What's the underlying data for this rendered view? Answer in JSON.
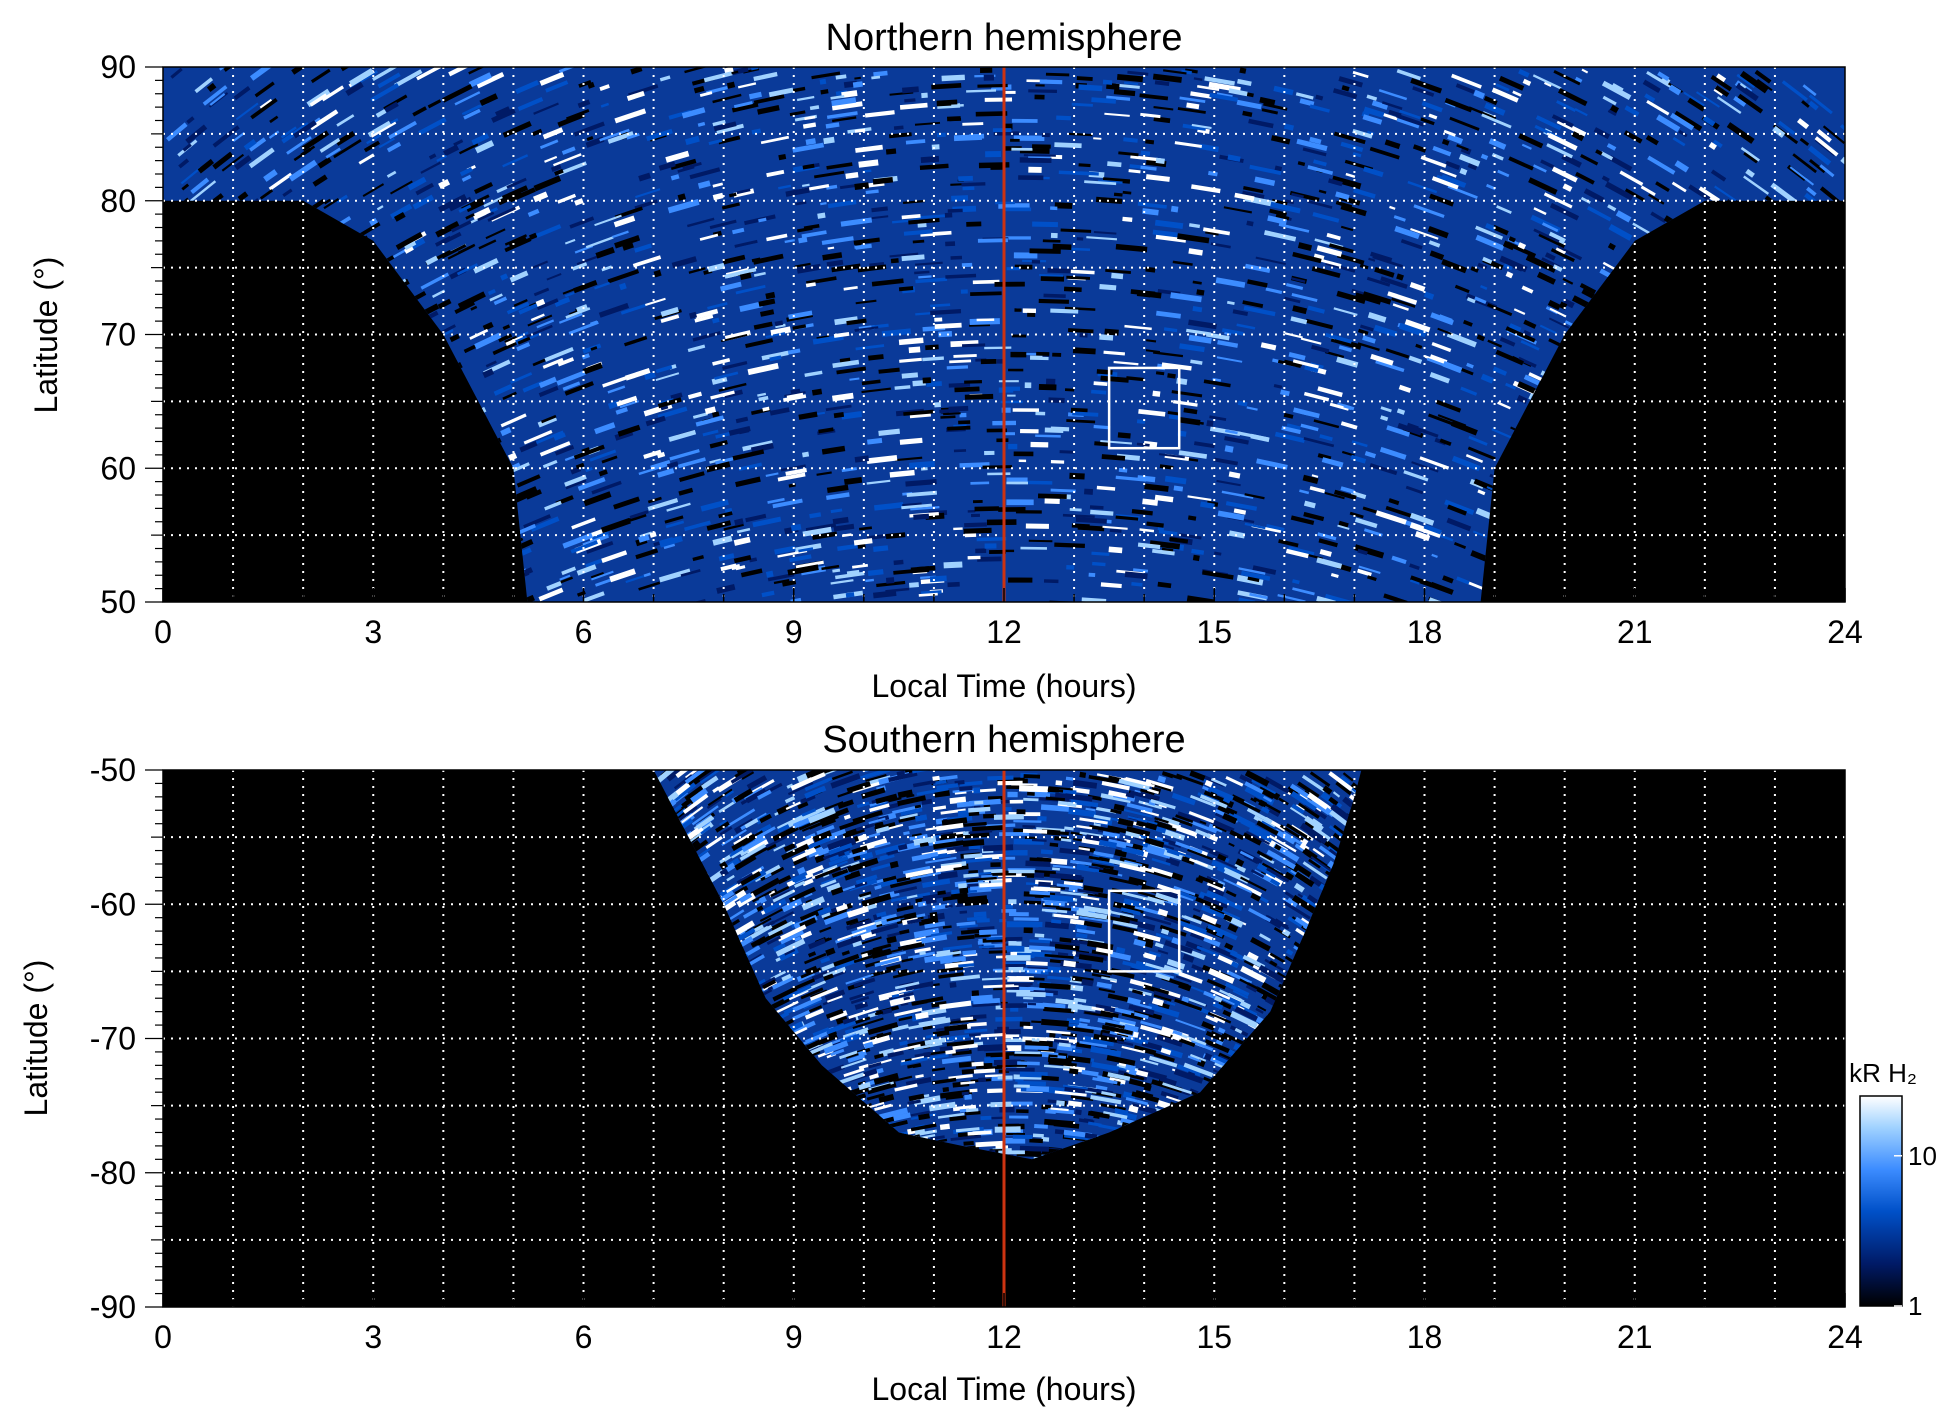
{
  "chart_data": [
    {
      "type": "heatmap",
      "title": "Northern hemisphere",
      "xlabel": "Local Time (hours)",
      "ylabel": "Latitude (°)",
      "xlim": [
        0,
        24
      ],
      "ylim": [
        50,
        90
      ],
      "x_ticks": [
        "0",
        "3",
        "6",
        "9",
        "12",
        "15",
        "18",
        "21",
        "24"
      ],
      "y_ticks": [
        "50",
        "60",
        "70",
        "80",
        "90"
      ],
      "grid": true,
      "reference_line": {
        "x": 12,
        "color": "#cc3311"
      },
      "highlight_box": {
        "x": [
          13.5,
          14.5
        ],
        "y": [
          61.5,
          67.5
        ],
        "color": "#ffffff"
      },
      "coverage_envelope": [
        [
          0,
          80
        ],
        [
          1,
          80
        ],
        [
          2,
          80
        ],
        [
          3,
          77
        ],
        [
          4,
          70
        ],
        [
          5,
          60
        ],
        [
          5.2,
          50
        ],
        [
          18.8,
          50
        ],
        [
          19,
          60
        ],
        [
          20,
          70
        ],
        [
          21,
          77
        ],
        [
          22,
          80
        ],
        [
          24,
          80
        ]
      ],
      "background_color": "#000000"
    },
    {
      "type": "heatmap",
      "title": "Southern hemisphere",
      "xlabel": "Local Time (hours)",
      "ylabel": "Latitude (°)",
      "xlim": [
        0,
        24
      ],
      "ylim": [
        -90,
        -50
      ],
      "x_ticks": [
        "0",
        "3",
        "6",
        "9",
        "12",
        "15",
        "18",
        "21",
        "24"
      ],
      "y_ticks": [
        "-50",
        "-60",
        "-70",
        "-80",
        "-90"
      ],
      "grid": true,
      "reference_line": {
        "x": 12,
        "color": "#cc3311"
      },
      "highlight_box": {
        "x": [
          13.5,
          14.5
        ],
        "y": [
          -65,
          -59
        ],
        "color": "#ffffff"
      },
      "coverage_envelope": [
        [
          7,
          -50
        ],
        [
          7.5,
          -55
        ],
        [
          8,
          -60
        ],
        [
          8.6,
          -67
        ],
        [
          9.4,
          -72
        ],
        [
          10.5,
          -77
        ],
        [
          11.4,
          -78
        ],
        [
          12.4,
          -79
        ],
        [
          13.5,
          -77
        ],
        [
          14.8,
          -74
        ],
        [
          15.8,
          -68
        ],
        [
          16.3,
          -62
        ],
        [
          16.7,
          -57
        ],
        [
          17,
          -52
        ],
        [
          17.1,
          -50
        ]
      ],
      "background_color": "#000000"
    }
  ],
  "colorbar": {
    "label": "kR H₂",
    "ticks": [
      "1",
      "10"
    ],
    "scale": "log",
    "range": [
      1,
      25
    ],
    "colors": [
      "#000000",
      "#001a66",
      "#0050c8",
      "#3c8cff",
      "#a0d2ff",
      "#ffffff"
    ]
  }
}
